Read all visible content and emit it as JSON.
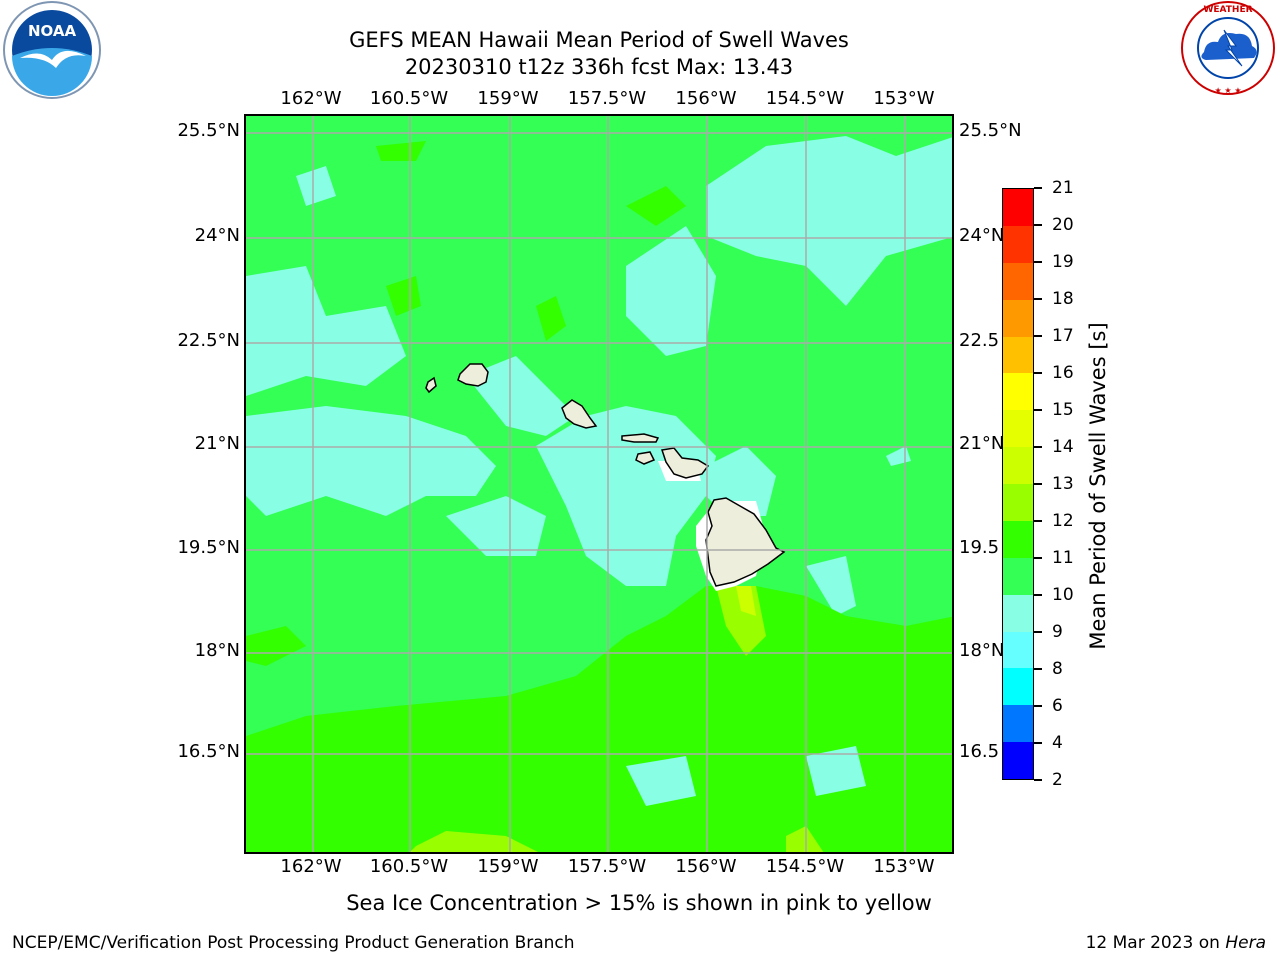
{
  "title_line1": "GEFS MEAN Hawaii Mean Period of Swell Waves",
  "title_line2": "20230310 t12z 336h fcst   Max: 13.43",
  "logos": {
    "left": "noaa-logo",
    "right": "nws-logo",
    "left_text": "NOAA",
    "right_text": "NATIONAL WEATHER SERVICE"
  },
  "lon_ticks": [
    "162°W",
    "160.5°W",
    "159°W",
    "157.5°W",
    "156°W",
    "154.5°W",
    "153°W"
  ],
  "lat_ticks_left": [
    "25.5°N",
    "24°N",
    "22.5°N",
    "21°N",
    "19.5°N",
    "18°N",
    "16.5°N"
  ],
  "lat_ticks_right": [
    "25.5°N",
    "24°N",
    "22.5",
    "21°N",
    "19.5",
    "18°N",
    "16.5"
  ],
  "colorbar": {
    "label": "Mean Period of Swell Waves [s]",
    "ticks": [
      "21",
      "20",
      "19",
      "18",
      "17",
      "16",
      "15",
      "14",
      "13",
      "12",
      "11",
      "10",
      "9",
      "8",
      "6",
      "4",
      "2"
    ],
    "colors": [
      "#ff0000",
      "#ff3300",
      "#ff6600",
      "#ff9900",
      "#ffc000",
      "#ffff00",
      "#e6ff00",
      "#ccff00",
      "#99ff00",
      "#33ff00",
      "#33ff55",
      "#88ffe5",
      "#66ffff",
      "#00ffff",
      "#0077ff",
      "#0000ff"
    ]
  },
  "map_colors": {
    "bg_green": "#33ff55",
    "light_cyan": "#88ffe5",
    "bright_green": "#33ff00",
    "lime": "#99ff00",
    "yellow_green": "#ccff00",
    "land": "#eeeedd",
    "grid": "#aaaaaa"
  },
  "caption": "Sea Ice Concentration > 15% is shown in pink to yellow",
  "footer_left": "NCEP/EMC/Verification Post Processing Product Generation Branch",
  "footer_date": "12 Mar 2023 on ",
  "footer_host": "Hera"
}
